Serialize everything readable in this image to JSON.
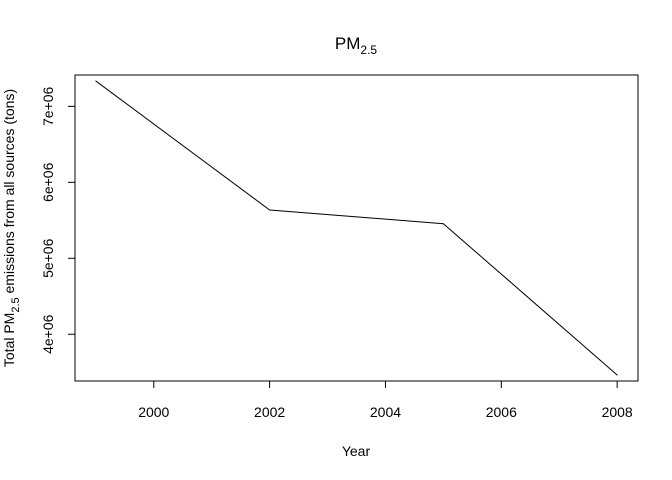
{
  "chart_data": {
    "type": "line",
    "title": "PM",
    "title_subscript": "2.5",
    "xlabel": "Year",
    "ylabel_prefix": "Total PM",
    "ylabel_subscript": "2.5",
    "ylabel_suffix": " emissions from all sources (tons)",
    "x": [
      1999,
      2002,
      2005,
      2008
    ],
    "y": [
      7332967,
      5635780,
      5454703,
      3464206
    ],
    "xlim": [
      1998.64,
      2008.36
    ],
    "ylim": [
      3384616,
      7412557
    ],
    "x_ticks": [
      2000,
      2002,
      2004,
      2006,
      2008
    ],
    "x_tick_labels": [
      "2000",
      "2002",
      "2004",
      "2006",
      "2008"
    ],
    "y_ticks": [
      4000000,
      5000000,
      6000000,
      7000000
    ],
    "y_tick_labels": [
      "4e+06",
      "5e+06",
      "6e+06",
      "7e+06"
    ],
    "grid": false,
    "legend": "none",
    "line_color": "#000000"
  }
}
